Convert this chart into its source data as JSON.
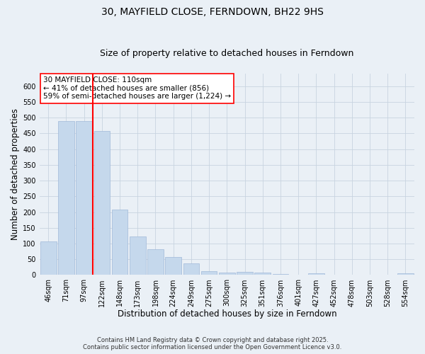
{
  "title": "30, MAYFIELD CLOSE, FERNDOWN, BH22 9HS",
  "subtitle": "Size of property relative to detached houses in Ferndown",
  "xlabel": "Distribution of detached houses by size in Ferndown",
  "ylabel": "Number of detached properties",
  "footnote1": "Contains HM Land Registry data © Crown copyright and database right 2025.",
  "footnote2": "Contains public sector information licensed under the Open Government Licence v3.0.",
  "categories": [
    "46sqm",
    "71sqm",
    "97sqm",
    "122sqm",
    "148sqm",
    "173sqm",
    "198sqm",
    "224sqm",
    "249sqm",
    "275sqm",
    "300sqm",
    "325sqm",
    "351sqm",
    "376sqm",
    "401sqm",
    "427sqm",
    "452sqm",
    "478sqm",
    "503sqm",
    "528sqm",
    "554sqm"
  ],
  "values": [
    107,
    490,
    490,
    458,
    207,
    122,
    82,
    57,
    38,
    13,
    8,
    10,
    8,
    3,
    0,
    5,
    0,
    0,
    0,
    0,
    5
  ],
  "bar_color": "#c5d8ec",
  "bar_edge_color": "#a0b8d8",
  "vline_color": "red",
  "vline_x_index": 2.5,
  "annotation_text": "30 MAYFIELD CLOSE: 110sqm\n← 41% of detached houses are smaller (856)\n59% of semi-detached houses are larger (1,224) →",
  "annotation_box_color": "white",
  "annotation_box_edge": "red",
  "ylim": [
    0,
    640
  ],
  "yticks": [
    0,
    50,
    100,
    150,
    200,
    250,
    300,
    350,
    400,
    450,
    500,
    550,
    600
  ],
  "grid_color": "#c8d4e0",
  "background_color": "#eaf0f6",
  "title_fontsize": 10,
  "subtitle_fontsize": 9,
  "axis_label_fontsize": 8.5,
  "tick_fontsize": 7,
  "annotation_fontsize": 7.5,
  "footnote_fontsize": 6
}
